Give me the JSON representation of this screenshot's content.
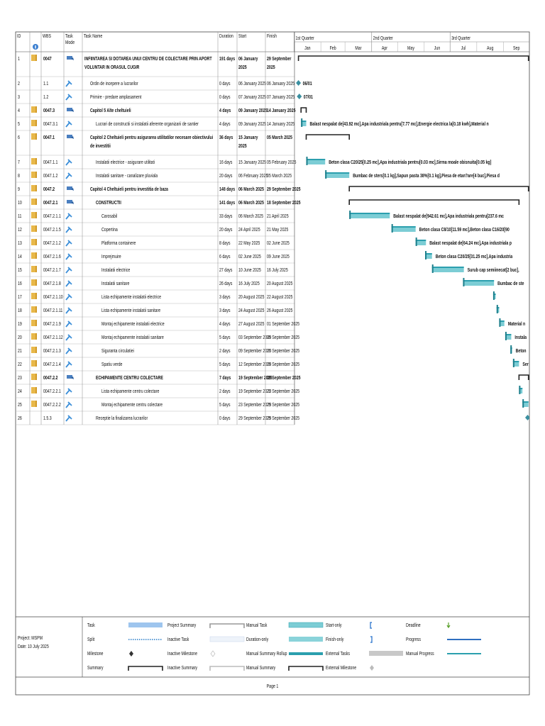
{
  "header": {
    "columns": [
      "ID",
      "WBS",
      "Task Mode",
      "Task Name",
      "Duration",
      "Start",
      "Finish"
    ],
    "quarters": [
      "1st Quarter",
      "2nd Quarter",
      "3rd Quarter"
    ],
    "months": [
      "Jan",
      "Feb",
      "Mar",
      "Apr",
      "May",
      "Jun",
      "Jul",
      "Aug",
      "Sep"
    ]
  },
  "tasks": [
    {
      "id": "1",
      "wbs": "0047",
      "name": "INFIINTAREA SI DOTAREA UNUI CENTRU DE COLECTARE PRIN APORT VOLUNTAR IN ORASUL CUGIR",
      "duration": "191 days",
      "start": "06 January 2025",
      "finish": "29 September 2025",
      "type": "summary",
      "note": true
    },
    {
      "id": "2",
      "wbs": "1.1",
      "name": "Ordin de incepere  a lucrarilor",
      "duration": "0 days",
      "start": "06 January 2025",
      "finish": "06 January 2025",
      "type": "milestone",
      "note": false,
      "bar_label": "06/01"
    },
    {
      "id": "3",
      "wbs": "1.2",
      "name": "Primire - predare amplasament",
      "duration": "0 days",
      "start": "07 January 2025",
      "finish": "07 January 2025",
      "type": "milestone",
      "note": false,
      "bar_label": "07/01"
    },
    {
      "id": "4",
      "wbs": "0047.3",
      "name": "Capitol 5 Alte cheltuieli",
      "duration": "4 days",
      "start": "09 January 2025",
      "finish": "14 January 2025",
      "type": "summary",
      "note": true
    },
    {
      "id": "5",
      "wbs": "0047.3.1",
      "name": "Lucrari de constructii si instalatii aferente organizarii de santier",
      "duration": "4 days",
      "start": "09 January 2025",
      "finish": "14 January 2025",
      "type": "task",
      "note": true,
      "bar_label": "Balast nespalat de[43.92 mc],Apa industriala pentru[7.77 mc],Energie electrica la[0.18 kwh],Material n"
    },
    {
      "id": "6",
      "wbs": "0047.1",
      "name": "Capitol 2 Cheltuieli pentru asigurarea utilitatilor necesare obiectivului de investitii",
      "duration": "36 days",
      "start": "15 January 2025",
      "finish": "05 March 2025",
      "type": "summary",
      "note": true
    },
    {
      "id": "7",
      "wbs": "0047.1.1",
      "name": "Instalatii electrice - asigurare utilitati",
      "duration": "16 days",
      "start": "15 January 2025",
      "finish": "05 February 2025",
      "type": "task",
      "note": true,
      "bar_label": "Beton clasa C20/25[0.25 mc],Apa industriala pentru[0.03 mc],Sirma moale obisnuita[0.05 kg]"
    },
    {
      "id": "8",
      "wbs": "0047.1.2",
      "name": "Instalatii sanitare - canalizare pluviala",
      "duration": "20 days",
      "start": "06 February 2025",
      "finish": "05 March 2025",
      "type": "task",
      "note": true,
      "bar_label": "Bumbac de sters[0.1 kg],Sapun pasta 38%[0.1 kg],Piesa de etan?are[4 buc],Piesa d"
    },
    {
      "id": "9",
      "wbs": "0047.2",
      "name": "Capitol 4 Cheltuieli pentru investitia de baza",
      "duration": "148 days",
      "start": "06 March 2025",
      "finish": "29 September 2025",
      "type": "summary",
      "note": true
    },
    {
      "id": "10",
      "wbs": "0047.2.1",
      "name": "CONSTRUCTII",
      "duration": "141 days",
      "start": "06 March 2025",
      "finish": "18 September 2025",
      "type": "summary",
      "note": true
    },
    {
      "id": "11",
      "wbs": "0047.2.1.1",
      "name": "Carosabil",
      "duration": "33 days",
      "start": "06 March 2025",
      "finish": "21 April 2025",
      "type": "task",
      "note": true,
      "bar_label": "Balast nespalat de[942.61 mc],Apa industriala pentru[237.6 mc"
    },
    {
      "id": "12",
      "wbs": "0047.2.1.5",
      "name": "Copertina",
      "duration": "20 days",
      "start": "24 April 2025",
      "finish": "21 May 2025",
      "type": "task",
      "note": true,
      "bar_label": "Beton clasa C8/10[11.59 mc],Beton clasa C16/20[90"
    },
    {
      "id": "13",
      "wbs": "0047.2.1.2",
      "name": "Platforma containere",
      "duration": "8 days",
      "start": "22 May 2025",
      "finish": "02 June 2025",
      "type": "task",
      "note": true,
      "bar_label": "Balast nespalat de[64.24 mc],Apa industriala p"
    },
    {
      "id": "14",
      "wbs": "0047.2.1.6",
      "name": "Imprejmuire",
      "duration": "6 days",
      "start": "02 June 2025",
      "finish": "09 June 2025",
      "type": "task",
      "note": true,
      "bar_label": "Beton clasa C20/25[31.25 mc],Apa industria"
    },
    {
      "id": "15",
      "wbs": "0047.2.1.7",
      "name": "Instalatii electrice",
      "duration": "27 days",
      "start": "10 June 2025",
      "finish": "16 July 2025",
      "type": "task",
      "note": true,
      "bar_label": "Surub cap semiinecat[2 buc],"
    },
    {
      "id": "16",
      "wbs": "0047.2.1.8",
      "name": "Instalatii sanitare",
      "duration": "26 days",
      "start": "16 July 2025",
      "finish": "20 August 2025",
      "type": "task",
      "note": true,
      "bar_label": "Bumbac de ste"
    },
    {
      "id": "17",
      "wbs": "0047.2.1.10",
      "name": "Lista echipamente instalatii electrice",
      "duration": "3 days",
      "start": "20 August 2025",
      "finish": "22 August 2025",
      "type": "task",
      "note": true
    },
    {
      "id": "18",
      "wbs": "0047.2.1.11",
      "name": "Lista echipamente instalatii sanitare",
      "duration": "3 days",
      "start": "24 August 2025",
      "finish": "26 August 2025",
      "type": "task",
      "note": true
    },
    {
      "id": "19",
      "wbs": "0047.2.1.9",
      "name": "Montaj echipamente instalatii electrice",
      "duration": "4 days",
      "start": "27 August 2025",
      "finish": "01 September 2025",
      "type": "task",
      "note": true,
      "bar_label": "Material n"
    },
    {
      "id": "20",
      "wbs": "0047.2.1.12",
      "name": "Montaj echipamente instalatii sanitare",
      "duration": "5 days",
      "start": "03 September 2025",
      "finish": "09 September 2025",
      "type": "task",
      "note": true,
      "bar_label": "Instala"
    },
    {
      "id": "21",
      "wbs": "0047.2.1.3",
      "name": "Siguranta circulatiei",
      "duration": "2 days",
      "start": "09 September 2025",
      "finish": "10 September 2025",
      "type": "task",
      "note": true,
      "bar_label": "Beton"
    },
    {
      "id": "22",
      "wbs": "0047.2.1.4",
      "name": "Spatiu verde",
      "duration": "5 days",
      "start": "12 September 2025",
      "finish": "18 September 2025",
      "type": "task",
      "note": true,
      "bar_label": "Ser"
    },
    {
      "id": "23",
      "wbs": "0047.2.2",
      "name": "ECHIPAMENTE CENTRU COLECTARE",
      "duration": "7 days",
      "start": "19 September 2025",
      "finish": "29 September 2025",
      "type": "summary",
      "note": true
    },
    {
      "id": "24",
      "wbs": "0047.2.2.1",
      "name": "Lista echipamente centru colectare",
      "duration": "2 days",
      "start": "19 September 2025",
      "finish": "22 September 2025",
      "type": "task",
      "note": true
    },
    {
      "id": "25",
      "wbs": "0047.2.2.2",
      "name": "Montaj echipamente centru colectare",
      "duration": "5 days",
      "start": "23 September 2025",
      "finish": "29 September 2025",
      "type": "task",
      "note": true
    },
    {
      "id": "26",
      "wbs": "1.5.3",
      "name": "Receptie la finalizarea lucrarilor",
      "duration": "0 days",
      "start": "29 September 2025",
      "finish": "29 September 2025",
      "type": "milestone",
      "note": false
    }
  ],
  "legend": {
    "project": "Project: MSPM",
    "date": "Date: 10 July 2025",
    "items": [
      "Task",
      "Split",
      "Milestone",
      "Summary",
      "Project Summary",
      "Inactive Task",
      "Inactive Milestone",
      "Inactive Summary",
      "Manual Task",
      "Duration-only",
      "Manual Summary Rollup",
      "Manual Summary",
      "Start-only",
      "Finish-only",
      "External Tasks",
      "External Milestone",
      "Deadline",
      "Progress",
      "Manual Progress"
    ]
  },
  "footer": {
    "page": "Page 1"
  }
}
